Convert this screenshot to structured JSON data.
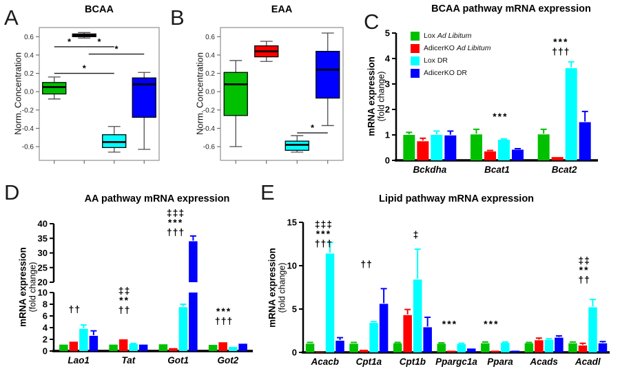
{
  "figure": {
    "colors": {
      "green": "#00C000",
      "red": "#FF0000",
      "cyan": "#00FFFF",
      "blue": "#0000FF",
      "frame": "#8f8f8f",
      "whisker": "#4d4d4d",
      "axis": "#000000"
    }
  },
  "panels": {
    "a": {
      "letter": "A"
    },
    "b": {
      "letter": "B"
    },
    "c": {
      "letter": "C"
    },
    "d": {
      "letter": "D"
    },
    "e": {
      "letter": "E"
    }
  },
  "chart_data": [
    {
      "panel": "A",
      "type": "box",
      "title": "BCAA",
      "ylabel": "Norm. Concentration",
      "ylim": [
        -0.75,
        0.7
      ],
      "yticks": [
        -0.6,
        -0.4,
        -0.2,
        0.0,
        0.2,
        0.4,
        0.6
      ],
      "groups": [
        {
          "name": "Lox Ad Libitum",
          "color": "green",
          "low": -0.08,
          "q1": -0.025,
          "median": 0.05,
          "q3": 0.1,
          "high": 0.16
        },
        {
          "name": "AdicerKO Ad Libitum",
          "color": "red",
          "low": 0.585,
          "q1": 0.6,
          "median": 0.615,
          "q3": 0.63,
          "high": 0.645
        },
        {
          "name": "Lox DR",
          "color": "cyan",
          "low": -0.66,
          "q1": -0.61,
          "median": -0.55,
          "q3": -0.47,
          "high": -0.38
        },
        {
          "name": "AdicerKO DR",
          "color": "blue",
          "low": -0.63,
          "q1": -0.28,
          "median": 0.08,
          "q3": 0.15,
          "high": 0.21
        }
      ],
      "sig_bars": [
        {
          "x1": 1,
          "x2": 2,
          "y": 0.49,
          "label": "*"
        },
        {
          "x1": 2,
          "x2": 3,
          "y": 0.49,
          "label": "*"
        },
        {
          "x1": 2.15,
          "x2": 4,
          "y": 0.41,
          "label": "*"
        },
        {
          "x1": 1,
          "x2": 3,
          "y": 0.2,
          "label": "*"
        }
      ]
    },
    {
      "panel": "B",
      "type": "box",
      "title": "EAA",
      "ylabel": "Norm. Concentration",
      "ylim": [
        -0.75,
        0.7
      ],
      "yticks": [
        -0.6,
        -0.4,
        -0.2,
        0.0,
        0.2,
        0.4,
        0.6
      ],
      "groups": [
        {
          "name": "Lox Ad Libitum",
          "color": "green",
          "low": -0.6,
          "q1": -0.26,
          "median": 0.08,
          "q3": 0.21,
          "high": 0.34
        },
        {
          "name": "AdicerKO Ad Libitum",
          "color": "red",
          "low": 0.33,
          "q1": 0.38,
          "median": 0.44,
          "q3": 0.5,
          "high": 0.55
        },
        {
          "name": "Lox DR",
          "color": "cyan",
          "low": -0.66,
          "q1": -0.64,
          "median": -0.58,
          "q3": -0.54,
          "high": -0.48
        },
        {
          "name": "AdicerKO DR",
          "color": "blue",
          "low": -0.37,
          "q1": -0.07,
          "median": 0.24,
          "q3": 0.44,
          "high": 0.64
        }
      ],
      "sig_bars": [
        {
          "x1": 3,
          "x2": 4,
          "y": -0.45,
          "label": "*"
        }
      ]
    },
    {
      "panel": "C",
      "type": "grouped_bar",
      "title": "BCAA pathway mRNA expression",
      "ylabel": "mRNA expression",
      "ylabel2": "(fold change)",
      "ylim": [
        0,
        5
      ],
      "yticks": [
        0,
        1,
        2,
        3,
        4,
        5
      ],
      "categories": [
        "Bckdha",
        "Bcat1",
        "Bcat2"
      ],
      "series": [
        {
          "name": "Lox Ad Libitum",
          "color": "green",
          "values": [
            1.0,
            1.02,
            1.02
          ],
          "errors": [
            0.1,
            0.2,
            0.2
          ]
        },
        {
          "name": "AdicerKO Ad Libitum",
          "color": "red",
          "values": [
            0.75,
            0.35,
            0.13
          ],
          "errors": [
            0.12,
            0.04,
            0
          ]
        },
        {
          "name": "Lox DR",
          "color": "cyan",
          "values": [
            1.0,
            0.81,
            3.62
          ],
          "errors": [
            0.15,
            0.03,
            0.25
          ]
        },
        {
          "name": "AdicerKO DR",
          "color": "blue",
          "values": [
            0.98,
            0.42,
            1.5
          ],
          "errors": [
            0.17,
            0.04,
            0.42
          ]
        }
      ],
      "legend": {
        "items": [
          {
            "prefix": "Lox ",
            "italic": "Ad Libitum",
            "color": "green"
          },
          {
            "prefix": "AdicerKO ",
            "italic": "Ad Libitum",
            "color": "red"
          },
          {
            "prefix": "Lox DR",
            "italic": "",
            "color": "cyan"
          },
          {
            "prefix": "AdicerKO DR",
            "italic": "",
            "color": "blue"
          }
        ]
      },
      "annotations": [
        {
          "category": "Bcat1",
          "lines": [
            "***"
          ],
          "y": 1.6,
          "anchor": 0.55
        },
        {
          "category": "Bcat2",
          "lines": [
            "***",
            "†††"
          ],
          "y": 4.15,
          "anchor": 0.45
        }
      ]
    },
    {
      "panel": "D",
      "type": "grouped_bar_axis_break",
      "title": "AA pathway mRNA expression",
      "ylabel": "mRNA expression",
      "ylabel2": "(fold change)",
      "lower": {
        "lim": [
          0,
          10
        ],
        "ticks": [
          0,
          2,
          4,
          6,
          8,
          10
        ]
      },
      "upper": {
        "lim": [
          20,
          40
        ],
        "ticks": [
          20,
          25,
          30,
          35,
          40
        ]
      },
      "categories": [
        "Lao1",
        "Tat",
        "Got1",
        "Got2"
      ],
      "series": [
        {
          "name": "Lox Ad Libitum",
          "color": "green",
          "values": [
            1.1,
            1.1,
            1.15,
            1.05
          ],
          "errors": [
            0,
            0,
            0,
            0
          ]
        },
        {
          "name": "AdicerKO Ad Libitum",
          "color": "red",
          "values": [
            1.6,
            2.0,
            0.5,
            1.5
          ],
          "errors": [
            0,
            0,
            0,
            0
          ]
        },
        {
          "name": "Lox DR",
          "color": "cyan",
          "values": [
            3.8,
            1.2,
            7.5,
            0.7
          ],
          "errors": [
            0.65,
            0.1,
            0.5,
            0
          ]
        },
        {
          "name": "AdicerKO DR",
          "color": "blue",
          "values": [
            2.6,
            1.1,
            34.0,
            1.25
          ],
          "errors": [
            0.85,
            0,
            1.8,
            0
          ]
        }
      ],
      "annotations": [
        {
          "category": "Lao1",
          "lines": [
            "††"
          ],
          "y": 6.6,
          "anchor": 0.42
        },
        {
          "category": "Tat",
          "lines": [
            "‡‡",
            "**",
            "††"
          ],
          "y": 6.5,
          "anchor": 0.42
        },
        {
          "category": "Got1",
          "lines": [
            "‡‡‡",
            "***",
            "†††"
          ],
          "y": 36.0,
          "anchor": 0.45
        },
        {
          "category": "Got2",
          "lines": [
            "***",
            "†††"
          ],
          "y": 4.6,
          "anchor": 0.42
        }
      ]
    },
    {
      "panel": "E",
      "type": "grouped_bar",
      "title": "Lipid pathway mRNA expression",
      "ylabel": "mRNA expression",
      "ylabel2": "(fold change)",
      "ylim": [
        0,
        15
      ],
      "yticks": [
        0,
        5,
        10,
        15
      ],
      "categories": [
        "Acacb",
        "Cpt1a",
        "Cpt1b",
        "Ppargc1a",
        "Ppara",
        "Acads",
        "Acadl"
      ],
      "series": [
        {
          "name": "Lox Ad Libitum",
          "color": "green",
          "values": [
            1.0,
            1.0,
            1.05,
            1.0,
            1.05,
            1.05,
            1.05
          ],
          "errors": [
            0.15,
            0.15,
            0.1,
            0.1,
            0.15,
            0.1,
            0.15
          ]
        },
        {
          "name": "AdicerKO Ad Libitum",
          "color": "red",
          "values": [
            0.07,
            0.3,
            4.3,
            0.2,
            0.2,
            1.4,
            0.8
          ],
          "errors": [
            0,
            0,
            0.65,
            0,
            0,
            0.25,
            0.25
          ]
        },
        {
          "name": "Lox DR",
          "color": "cyan",
          "values": [
            11.4,
            3.4,
            8.4,
            0.95,
            1.1,
            1.45,
            5.2
          ],
          "errors": [
            1.3,
            0.15,
            3.5,
            0.1,
            0.1,
            0.12,
            0.9
          ]
        },
        {
          "name": "AdicerKO DR",
          "color": "blue",
          "values": [
            1.35,
            5.6,
            2.9,
            0.45,
            0.2,
            1.7,
            1.05
          ],
          "errors": [
            0.35,
            1.75,
            1.15,
            0,
            0,
            0.2,
            0.2
          ]
        }
      ],
      "annotations": [
        {
          "category": "Acacb",
          "lines": [
            "‡‡‡",
            "***",
            "†††"
          ],
          "y": 12.2,
          "anchor": 0.47
        },
        {
          "category": "Cpt1a",
          "lines": [
            "††"
          ],
          "y": 9.8,
          "anchor": 0.45
        },
        {
          "category": "Cpt1b",
          "lines": [
            "‡"
          ],
          "y": 13.2,
          "anchor": 0.58
        },
        {
          "category": "Ppargc1a",
          "lines": [
            "***"
          ],
          "y": 2.9,
          "anchor": 0.35
        },
        {
          "category": "Ppara",
          "lines": [
            "***"
          ],
          "y": 2.9,
          "anchor": 0.3
        },
        {
          "category": "Acadl",
          "lines": [
            "‡‡",
            "**",
            "††"
          ],
          "y": 8.0,
          "anchor": 0.42
        }
      ]
    }
  ]
}
